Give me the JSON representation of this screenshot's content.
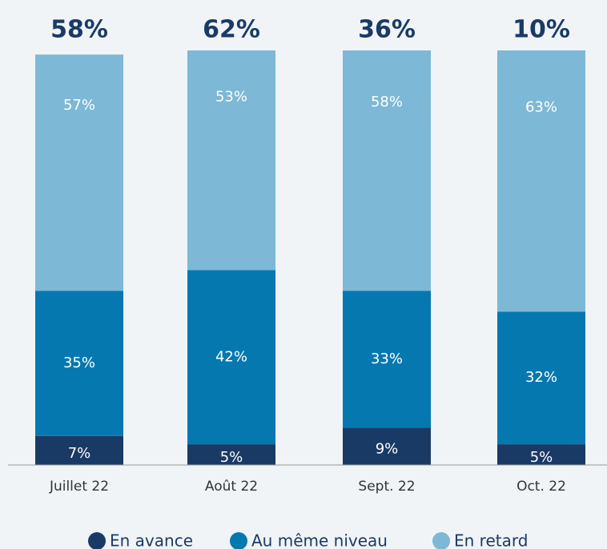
{
  "chart_data": {
    "type": "stacked-bar",
    "categories": [
      "Juillet 22",
      "Août 22",
      "Sept. 22",
      "Oct. 22"
    ],
    "annotations": [
      "58%",
      "62%",
      "36%",
      "10%"
    ],
    "ylim": [
      0,
      100
    ],
    "series": [
      {
        "name": "En avance",
        "color": "#1a3a66",
        "values": [
          7,
          5,
          9,
          5
        ],
        "value_labels": [
          "7%",
          "5%",
          "9%",
          "5%"
        ]
      },
      {
        "name": "Au même niveau",
        "color": "#0678b0",
        "values": [
          35,
          42,
          33,
          32
        ],
        "value_labels": [
          "35%",
          "42%",
          "33%",
          "32%"
        ]
      },
      {
        "name": "En retard",
        "color": "#7db8d6",
        "values": [
          57,
          53,
          58,
          63
        ],
        "value_labels": [
          "57%",
          "53%",
          "58%",
          "63%"
        ]
      }
    ]
  }
}
